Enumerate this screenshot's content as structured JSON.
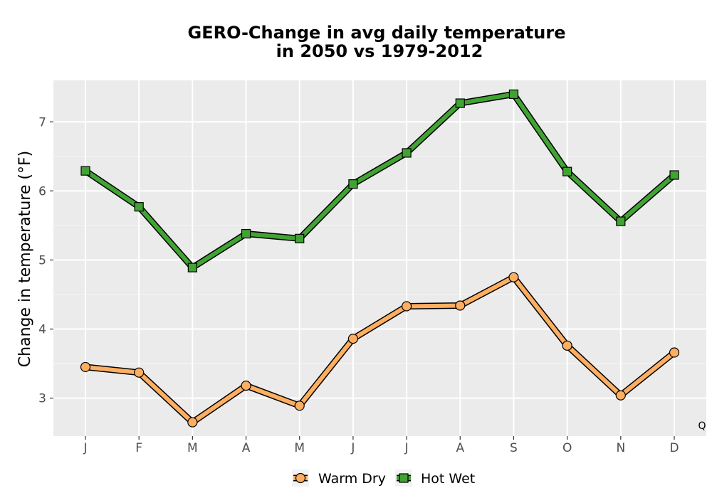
{
  "chart_data": {
    "type": "line",
    "title_line1": "GERO-Change in avg daily temperature",
    "title_line2": "in 2050 vs 1979-2012",
    "xlabel": "",
    "ylabel": "Change in temperature (°F)",
    "categories": [
      "J",
      "F",
      "M",
      "A",
      "M",
      "J",
      "J",
      "A",
      "S",
      "O",
      "N",
      "D"
    ],
    "ylim": [
      2.45,
      7.6
    ],
    "yticks": [
      3,
      4,
      5,
      6,
      7
    ],
    "grid": true,
    "legend_position": "bottom",
    "corner_note": "Q",
    "series": [
      {
        "name": "Warm Dry",
        "marker": "circle",
        "color": "#FDAE61",
        "values": [
          3.45,
          3.37,
          2.65,
          3.18,
          2.89,
          3.86,
          4.33,
          4.34,
          4.75,
          3.76,
          3.04,
          3.66
        ]
      },
      {
        "name": "Hot Wet",
        "marker": "square",
        "color": "#41A333",
        "values": [
          6.29,
          5.77,
          4.89,
          5.38,
          5.31,
          6.1,
          6.55,
          7.27,
          7.4,
          6.28,
          5.56,
          6.23
        ]
      }
    ]
  }
}
